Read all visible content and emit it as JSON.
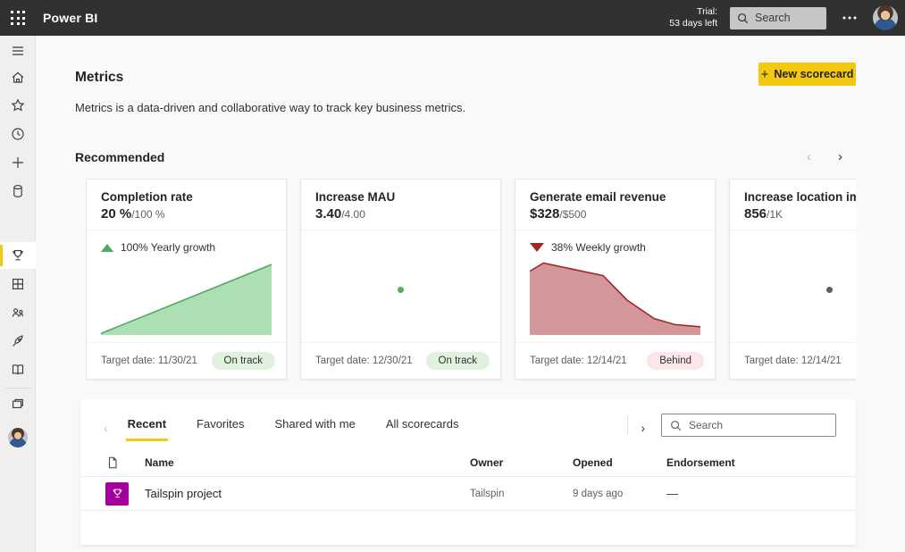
{
  "topbar": {
    "app_title": "Power BI",
    "trial_line1": "Trial:",
    "trial_line2": "53 days left",
    "search_placeholder": "Search"
  },
  "sidebar": {
    "icons": [
      "menu",
      "home",
      "favorites",
      "recent",
      "create",
      "datasets",
      "metrics",
      "apps",
      "shared-with-me",
      "deployment-pipelines",
      "learn",
      "workspaces",
      "my-workspace"
    ],
    "selected": "metrics"
  },
  "page": {
    "title": "Metrics",
    "description": "Metrics is a data-driven and collaborative way to track key business metrics.",
    "new_scorecard_label": "New scorecard",
    "recommended_label": "Recommended",
    "carousel_prev": "‹",
    "carousel_next": "›"
  },
  "cards": [
    {
      "title": "Completion rate",
      "value": "20 %",
      "target": "/100 %",
      "growth_text": "100% Yearly growth",
      "growth_direction": "up",
      "target_date": "Target date: 11/30/21",
      "status": "On track",
      "status_kind": "on-track",
      "chart": {
        "type": "area",
        "stroke": "#4DA95F",
        "fill": "#ACE0B4",
        "points": [
          [
            0,
            0.98
          ],
          [
            1,
            0.05
          ]
        ]
      }
    },
    {
      "title": "Increase MAU",
      "value": "3.40",
      "target": "/4.00",
      "growth_text": "",
      "growth_direction": "none",
      "target_date": "Target date: 12/30/21",
      "status": "On track",
      "status_kind": "on-track",
      "chart": {
        "type": "dot",
        "color": "#4DB25F"
      }
    },
    {
      "title": "Generate email revenue",
      "value": "$328",
      "target": "/$500",
      "growth_text": "38% Weekly growth",
      "growth_direction": "down",
      "target_date": "Target date: 12/14/21",
      "status": "Behind",
      "status_kind": "behind",
      "chart": {
        "type": "area",
        "stroke": "#A4262C",
        "fill": "#D2969B",
        "points": [
          [
            0,
            0.14
          ],
          [
            0.08,
            0.03
          ],
          [
            0.43,
            0.2
          ],
          [
            0.57,
            0.53
          ],
          [
            0.73,
            0.78
          ],
          [
            0.85,
            0.86
          ],
          [
            1,
            0.89
          ]
        ]
      }
    },
    {
      "title": "Increase location impre",
      "value": "856",
      "target": "/1K",
      "growth_text": "",
      "growth_direction": "none",
      "target_date": "Target date: 12/14/21",
      "status": "",
      "status_kind": "neutral",
      "chart": {
        "type": "dot",
        "color": "#605E5C"
      }
    }
  ],
  "scorecards": {
    "tabs": [
      {
        "label": "Recent",
        "active": true
      },
      {
        "label": "Favorites",
        "active": false
      },
      {
        "label": "Shared with me",
        "active": false
      },
      {
        "label": "All scorecards",
        "active": false
      }
    ],
    "prev_chevron": "‹",
    "next_chevron": "›",
    "search_placeholder": "Search",
    "columns": [
      "Name",
      "Owner",
      "Opened",
      "Endorsement"
    ],
    "rows": [
      {
        "name": "Tailspin project",
        "owner": "Tailspin",
        "opened": "9 days ago",
        "endorsement": "—"
      }
    ]
  },
  "colors": {
    "accent_yellow": "#F2C811",
    "topbar_bg": "#323130",
    "on_track_bg": "#DFF2DD",
    "behind_bg": "#FBE7EA",
    "metric_tile_magenta": "#A4009E",
    "growth_up_green": "#4DA95F",
    "growth_down_red": "#A4262C"
  }
}
